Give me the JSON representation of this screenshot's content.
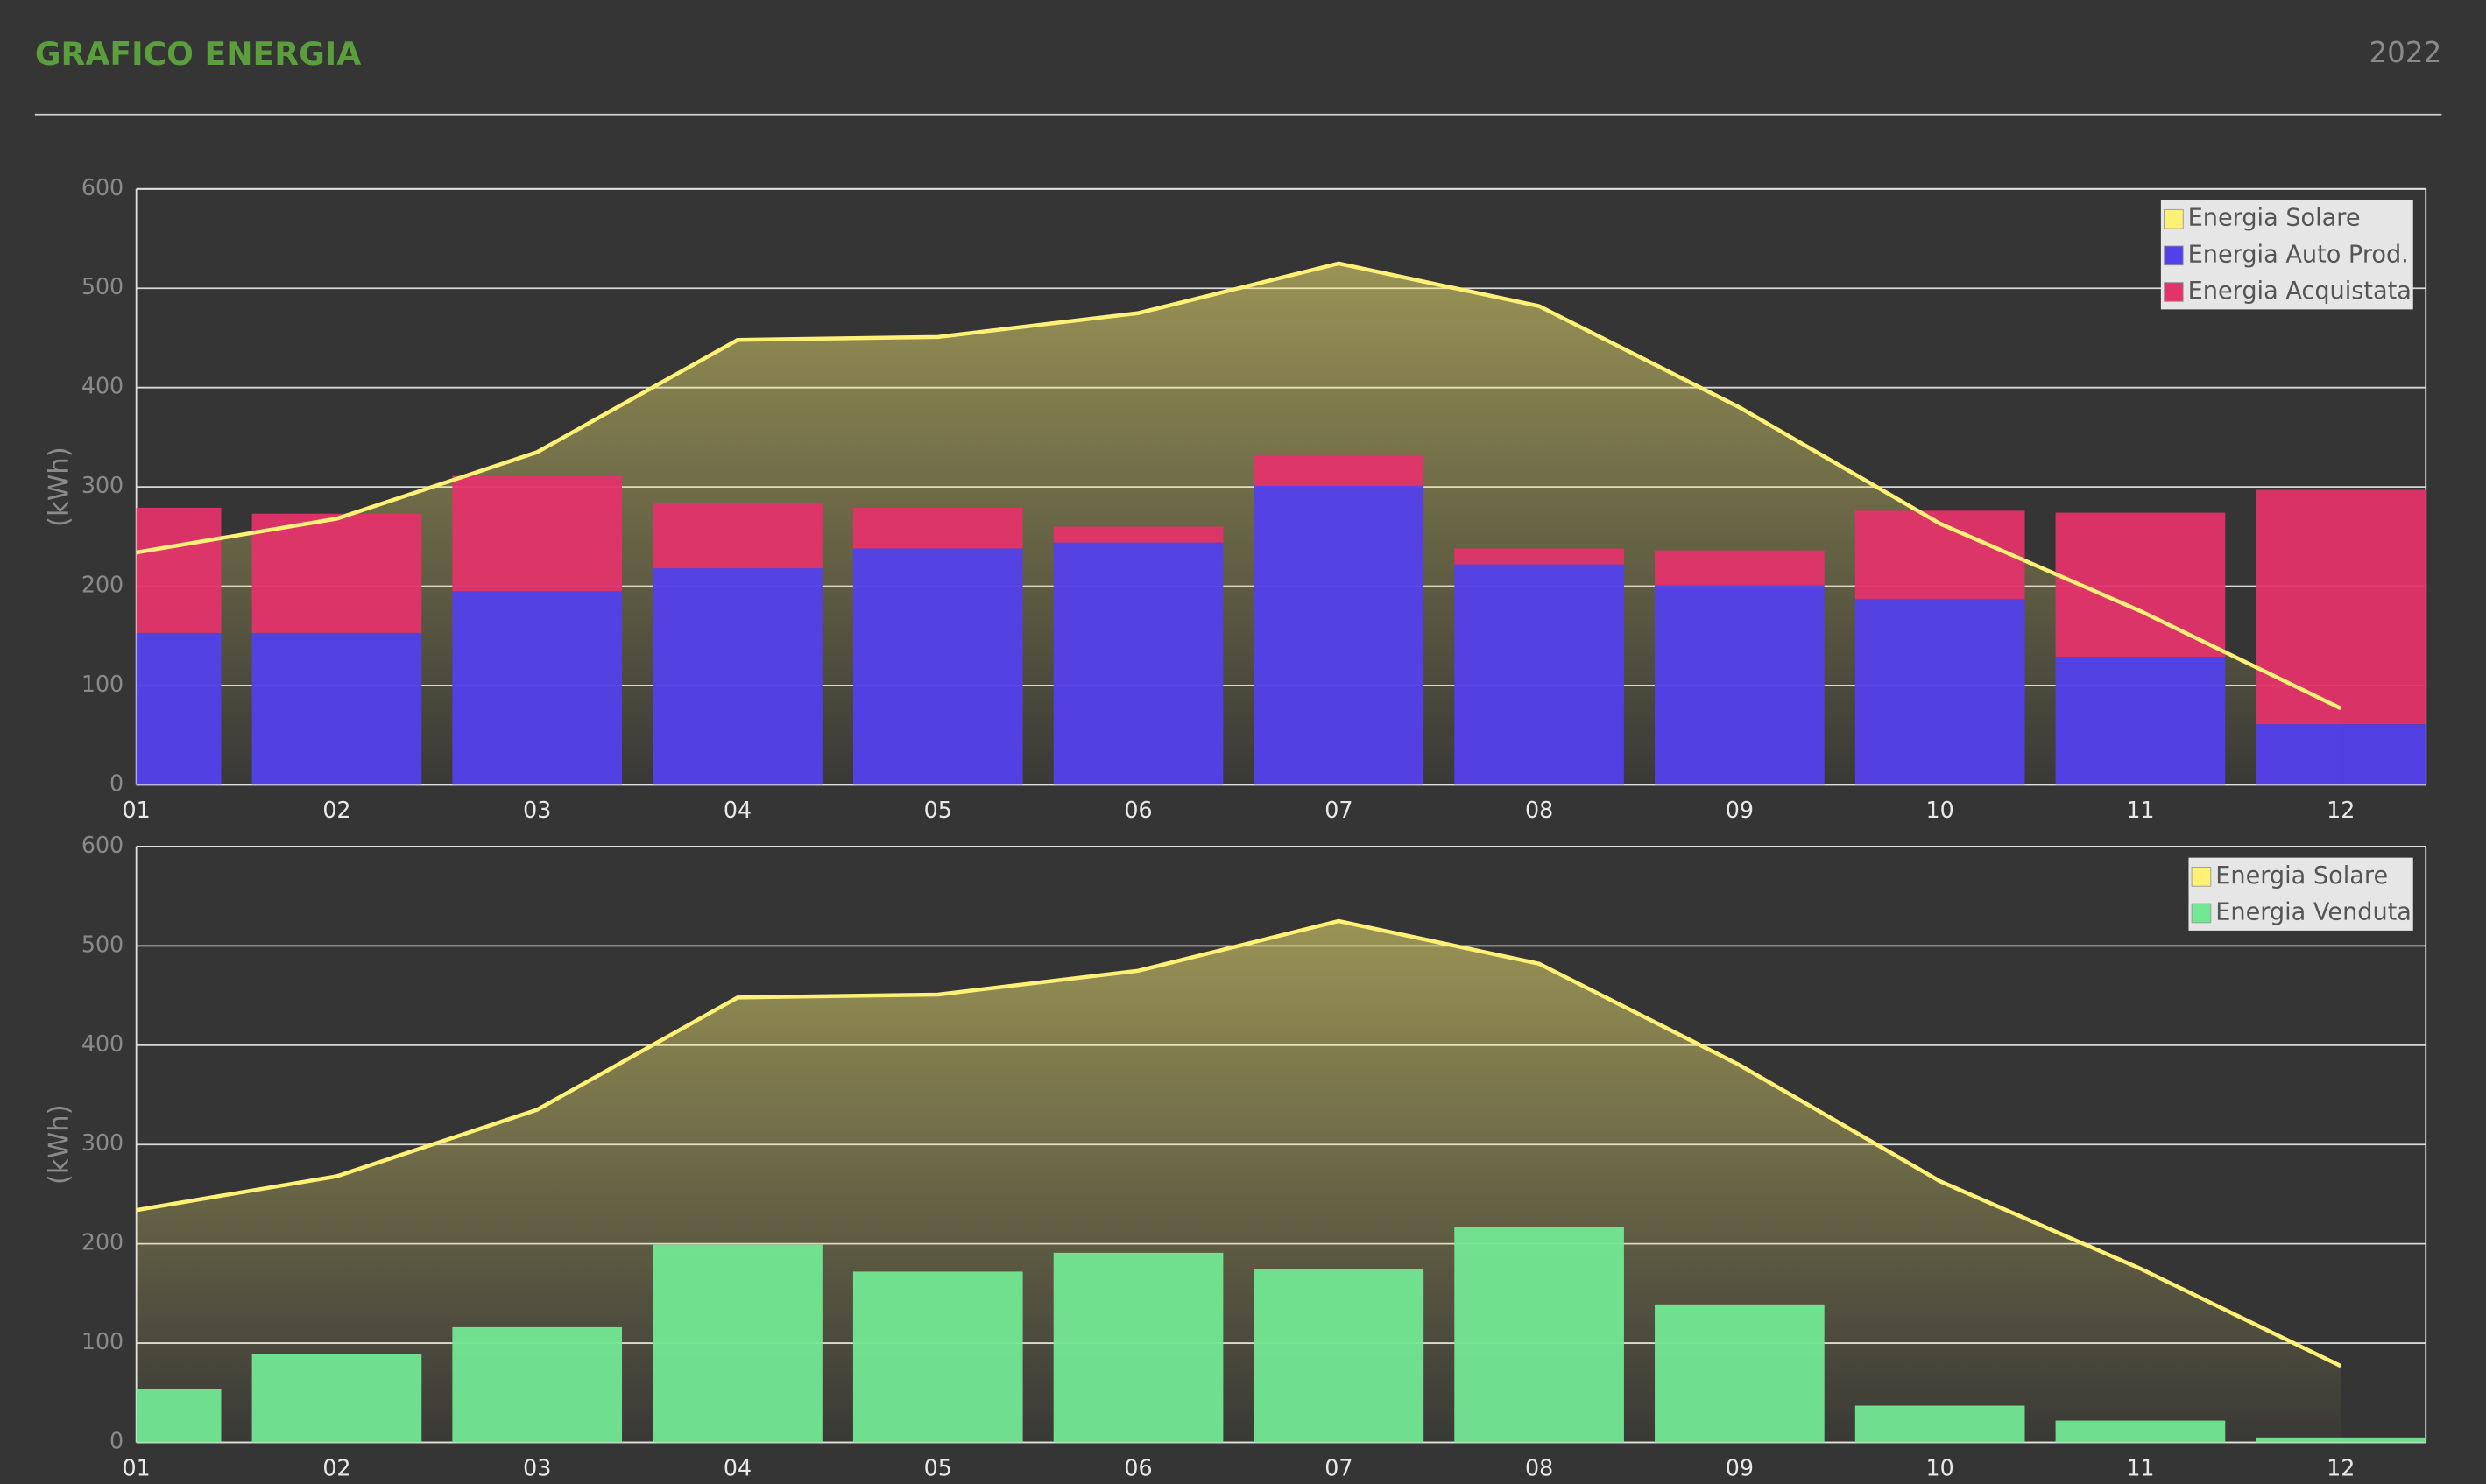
{
  "header": {
    "title": "GRAFICO ENERGIA",
    "year": "2022"
  },
  "chart_data": [
    {
      "type": "bar",
      "stacked": true,
      "ylabel": "(kWh)",
      "categories": [
        "01",
        "02",
        "03",
        "04",
        "05",
        "06",
        "07",
        "08",
        "09",
        "10",
        "11",
        "12"
      ],
      "ylim": [
        0,
        600
      ],
      "yticks": [
        0,
        100,
        200,
        300,
        400,
        500,
        600
      ],
      "grid": true,
      "legend": "top-right",
      "series": [
        {
          "name": "Energia Solare",
          "type": "line",
          "color": "#fff176",
          "values": [
            234,
            268,
            335,
            448,
            451,
            475,
            525,
            482,
            380,
            263,
            175,
            77
          ]
        },
        {
          "name": "Energia Auto Prod.",
          "type": "bar",
          "color": "#5340eb",
          "values": [
            153,
            153,
            195,
            218,
            238,
            244,
            301,
            222,
            201,
            187,
            129,
            61
          ]
        },
        {
          "name": "Energia Acquistata",
          "type": "bar",
          "color": "#e3336a",
          "values": [
            126,
            120,
            116,
            66,
            41,
            16,
            31,
            16,
            35,
            89,
            145,
            236
          ]
        }
      ]
    },
    {
      "type": "bar",
      "stacked": false,
      "ylabel": "(kWh)",
      "categories": [
        "01",
        "02",
        "03",
        "04",
        "05",
        "06",
        "07",
        "08",
        "09",
        "10",
        "11",
        "12"
      ],
      "ylim": [
        0,
        600
      ],
      "yticks": [
        0,
        100,
        200,
        300,
        400,
        500,
        600
      ],
      "grid": true,
      "legend": "top-right",
      "series": [
        {
          "name": "Energia Solare",
          "type": "line",
          "color": "#fff176",
          "values": [
            234,
            268,
            335,
            448,
            451,
            475,
            525,
            482,
            380,
            263,
            175,
            77
          ]
        },
        {
          "name": "Energia Venduta",
          "type": "bar",
          "color": "#72e893",
          "values": [
            54,
            89,
            116,
            199,
            172,
            191,
            175,
            217,
            139,
            37,
            22,
            5
          ]
        }
      ]
    }
  ]
}
